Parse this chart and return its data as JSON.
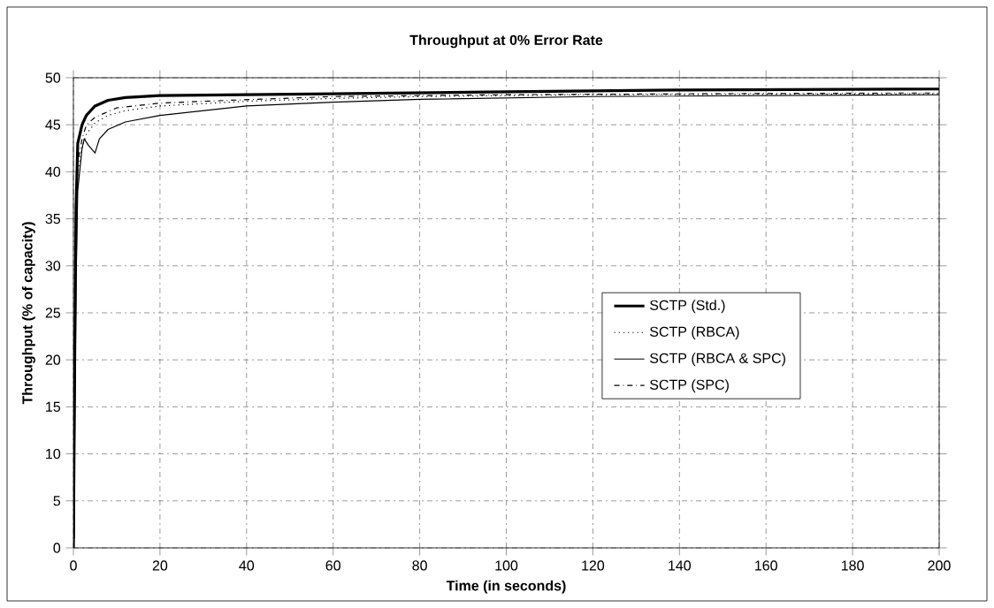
{
  "chart_data": {
    "type": "line",
    "title": "Throughput at 0% Error Rate",
    "xlabel": "Time (in seconds)",
    "ylabel": "Throughput (% of capacity)",
    "xlim": [
      0,
      200
    ],
    "ylim": [
      0,
      50
    ],
    "xticks": [
      0,
      20,
      40,
      60,
      80,
      100,
      120,
      140,
      160,
      180,
      200
    ],
    "yticks": [
      0,
      5,
      10,
      15,
      20,
      25,
      30,
      35,
      40,
      45,
      50
    ],
    "grid": true,
    "legend": "right",
    "marker": "none",
    "series": [
      {
        "name": "SCTP (Std.)",
        "color": "#000000",
        "line_style": "solid",
        "x": [
          0,
          0.3,
          0.6,
          1,
          2,
          3,
          5,
          8,
          12,
          20,
          40,
          60,
          100,
          140,
          200
        ],
        "values": [
          0,
          20,
          36,
          43,
          45,
          46,
          47,
          47.6,
          47.9,
          48.1,
          48.2,
          48.3,
          48.5,
          48.7,
          48.8
        ]
      },
      {
        "name": "SCTP (RBCA)",
        "color": "#000000",
        "line_style": "dotted",
        "x": [
          0.1,
          0.3,
          0.6,
          1,
          2,
          3,
          5,
          8,
          12,
          20,
          40,
          60,
          80,
          120,
          200
        ],
        "values": [
          2,
          15,
          32,
          40,
          42.5,
          44,
          45.2,
          46,
          46.5,
          47,
          47.5,
          47.8,
          48,
          48.2,
          48.3
        ]
      },
      {
        "name": "SCTP (RBCA & SPC)",
        "color": "#000000",
        "line_style": "solid",
        "x": [
          0.2,
          0.3,
          0.6,
          1,
          2,
          2.5,
          3.5,
          5,
          6,
          8,
          12,
          20,
          40,
          60,
          80,
          120,
          200
        ],
        "values": [
          1,
          12,
          28,
          38,
          42.5,
          43.5,
          42.8,
          42,
          43.5,
          44.5,
          45.3,
          46,
          47,
          47.4,
          47.7,
          48,
          48.2
        ]
      },
      {
        "name": "SCTP (SPC)",
        "color": "#000000",
        "line_style": "dashdot",
        "x": [
          0.1,
          0.3,
          0.6,
          1,
          2,
          3,
          5,
          10,
          20,
          30,
          60,
          100,
          200
        ],
        "values": [
          4,
          18,
          34,
          41,
          43.5,
          45,
          45.8,
          46.8,
          47.3,
          47.5,
          48,
          48.2,
          48.4
        ]
      }
    ]
  }
}
